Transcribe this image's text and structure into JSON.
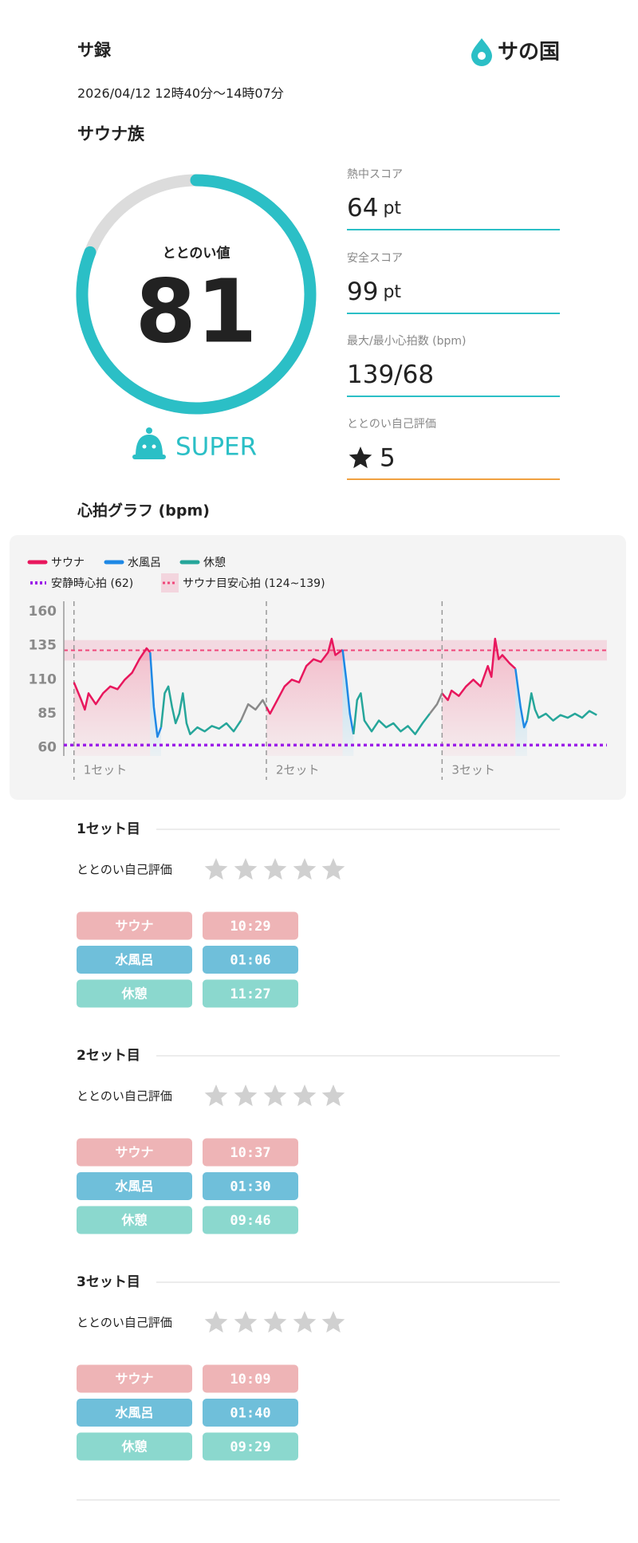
{
  "header": {
    "title": "サ録",
    "logo": "サの国",
    "datetime": "2026/04/12 12時40分〜14時07分",
    "rank": "サウナ族"
  },
  "totonoi": {
    "label": "ととのい値",
    "value": 81,
    "grade": "SUPER"
  },
  "scores": [
    {
      "label": "熱中スコア",
      "value": 64,
      "unit": "pt"
    },
    {
      "label": "安全スコア",
      "value": 99,
      "unit": "pt"
    },
    {
      "label": "最大/最小心拍数 (bpm)",
      "value": "139/68"
    },
    {
      "label": "ととのい自己評価",
      "value": 5
    }
  ],
  "chart_data": {
    "type": "line",
    "title": "心拍グラフ (bpm)",
    "xlim": [
      -1.4,
      73.4
    ],
    "ylim": [
      54,
      164
    ],
    "yticks": [
      60,
      85,
      110,
      135,
      160
    ],
    "series": [
      {
        "name": "サウナ",
        "color": "#e8175d",
        "x": [
          0,
          1,
          1.5,
          2,
          3,
          4,
          5,
          6,
          7,
          8,
          9,
          10,
          10.5,
          18,
          26.5,
          27,
          28,
          29,
          30,
          31,
          32,
          33,
          34,
          35,
          35.5,
          36,
          37,
          44,
          50.7,
          51.5,
          52,
          53,
          54,
          55,
          56,
          57,
          57.5,
          58,
          58.5,
          59,
          60,
          60.8
        ],
        "values": [
          108,
          95,
          88,
          100,
          92,
          100,
          105,
          103,
          110,
          115,
          125,
          133,
          130,
          null,
          90,
          85,
          95,
          105,
          110,
          108,
          120,
          125,
          123,
          130,
          140,
          128,
          132,
          null,
          100,
          95,
          102,
          98,
          105,
          110,
          105,
          120,
          112,
          140,
          125,
          128,
          122,
          118
        ]
      },
      {
        "name": "水風呂",
        "color": "#1e88e5",
        "x": [
          10.5,
          11,
          11.5,
          12,
          25,
          37,
          37.5,
          38,
          38.5,
          50,
          60.8,
          61.5,
          62,
          62.4
        ],
        "values": [
          130,
          90,
          68,
          75,
          null,
          132,
          110,
          85,
          70,
          null,
          118,
          90,
          75,
          80
        ]
      },
      {
        "name": "休憩",
        "color": "#26a69a",
        "x": [
          12,
          12.5,
          13,
          13.5,
          14,
          14.5,
          15,
          15.5,
          16,
          17,
          18,
          19,
          20,
          21,
          22,
          23,
          30,
          38.5,
          39,
          39.5,
          40,
          41,
          42,
          43,
          44,
          45,
          46,
          47,
          48,
          49,
          55,
          62.4,
          63,
          63.5,
          64,
          65,
          66,
          67,
          68,
          69,
          70,
          71,
          72
        ],
        "values": [
          75,
          100,
          105,
          90,
          78,
          85,
          100,
          78,
          70,
          75,
          72,
          76,
          74,
          78,
          72,
          80,
          null,
          70,
          95,
          100,
          80,
          72,
          80,
          75,
          78,
          72,
          76,
          70,
          78,
          85,
          null,
          80,
          100,
          88,
          82,
          85,
          80,
          84,
          82,
          85,
          82,
          87,
          84
        ]
      },
      {
        "color": "#8a8a8a",
        "x": [
          23,
          24,
          25,
          26,
          26.5,
          40,
          49,
          50,
          50.7
        ],
        "values": [
          80,
          92,
          88,
          95,
          90,
          null,
          85,
          92,
          100
        ]
      }
    ],
    "resting_hr": {
      "label": "安静時心拍 (62)",
      "value": 62,
      "color": "#9b1de8"
    },
    "target_zone": {
      "label": "サウナ目安心拍 (124~139)",
      "range": [
        124,
        139
      ],
      "color": "#f0467a"
    },
    "set_markers": {
      "x": [
        0,
        26.5,
        50.7
      ],
      "labels": [
        "1セット",
        "2セット",
        "3セット"
      ]
    }
  },
  "sets": [
    {
      "title": "1セット目",
      "rating_label": "ととのい自己評価",
      "phases": [
        {
          "name": "サウナ",
          "time": "10:29"
        },
        {
          "name": "水風呂",
          "time": "01:06"
        },
        {
          "name": "休憩",
          "time": "11:27"
        }
      ]
    },
    {
      "title": "2セット目",
      "rating_label": "ととのい自己評価",
      "phases": [
        {
          "name": "サウナ",
          "time": "10:37"
        },
        {
          "name": "水風呂",
          "time": "01:30"
        },
        {
          "name": "休憩",
          "time": "09:46"
        }
      ]
    },
    {
      "title": "3セット目",
      "rating_label": "ととのい自己評価",
      "phases": [
        {
          "name": "サウナ",
          "time": "10:09"
        },
        {
          "name": "水風呂",
          "time": "01:40"
        },
        {
          "name": "休憩",
          "time": "09:29"
        }
      ]
    }
  ]
}
